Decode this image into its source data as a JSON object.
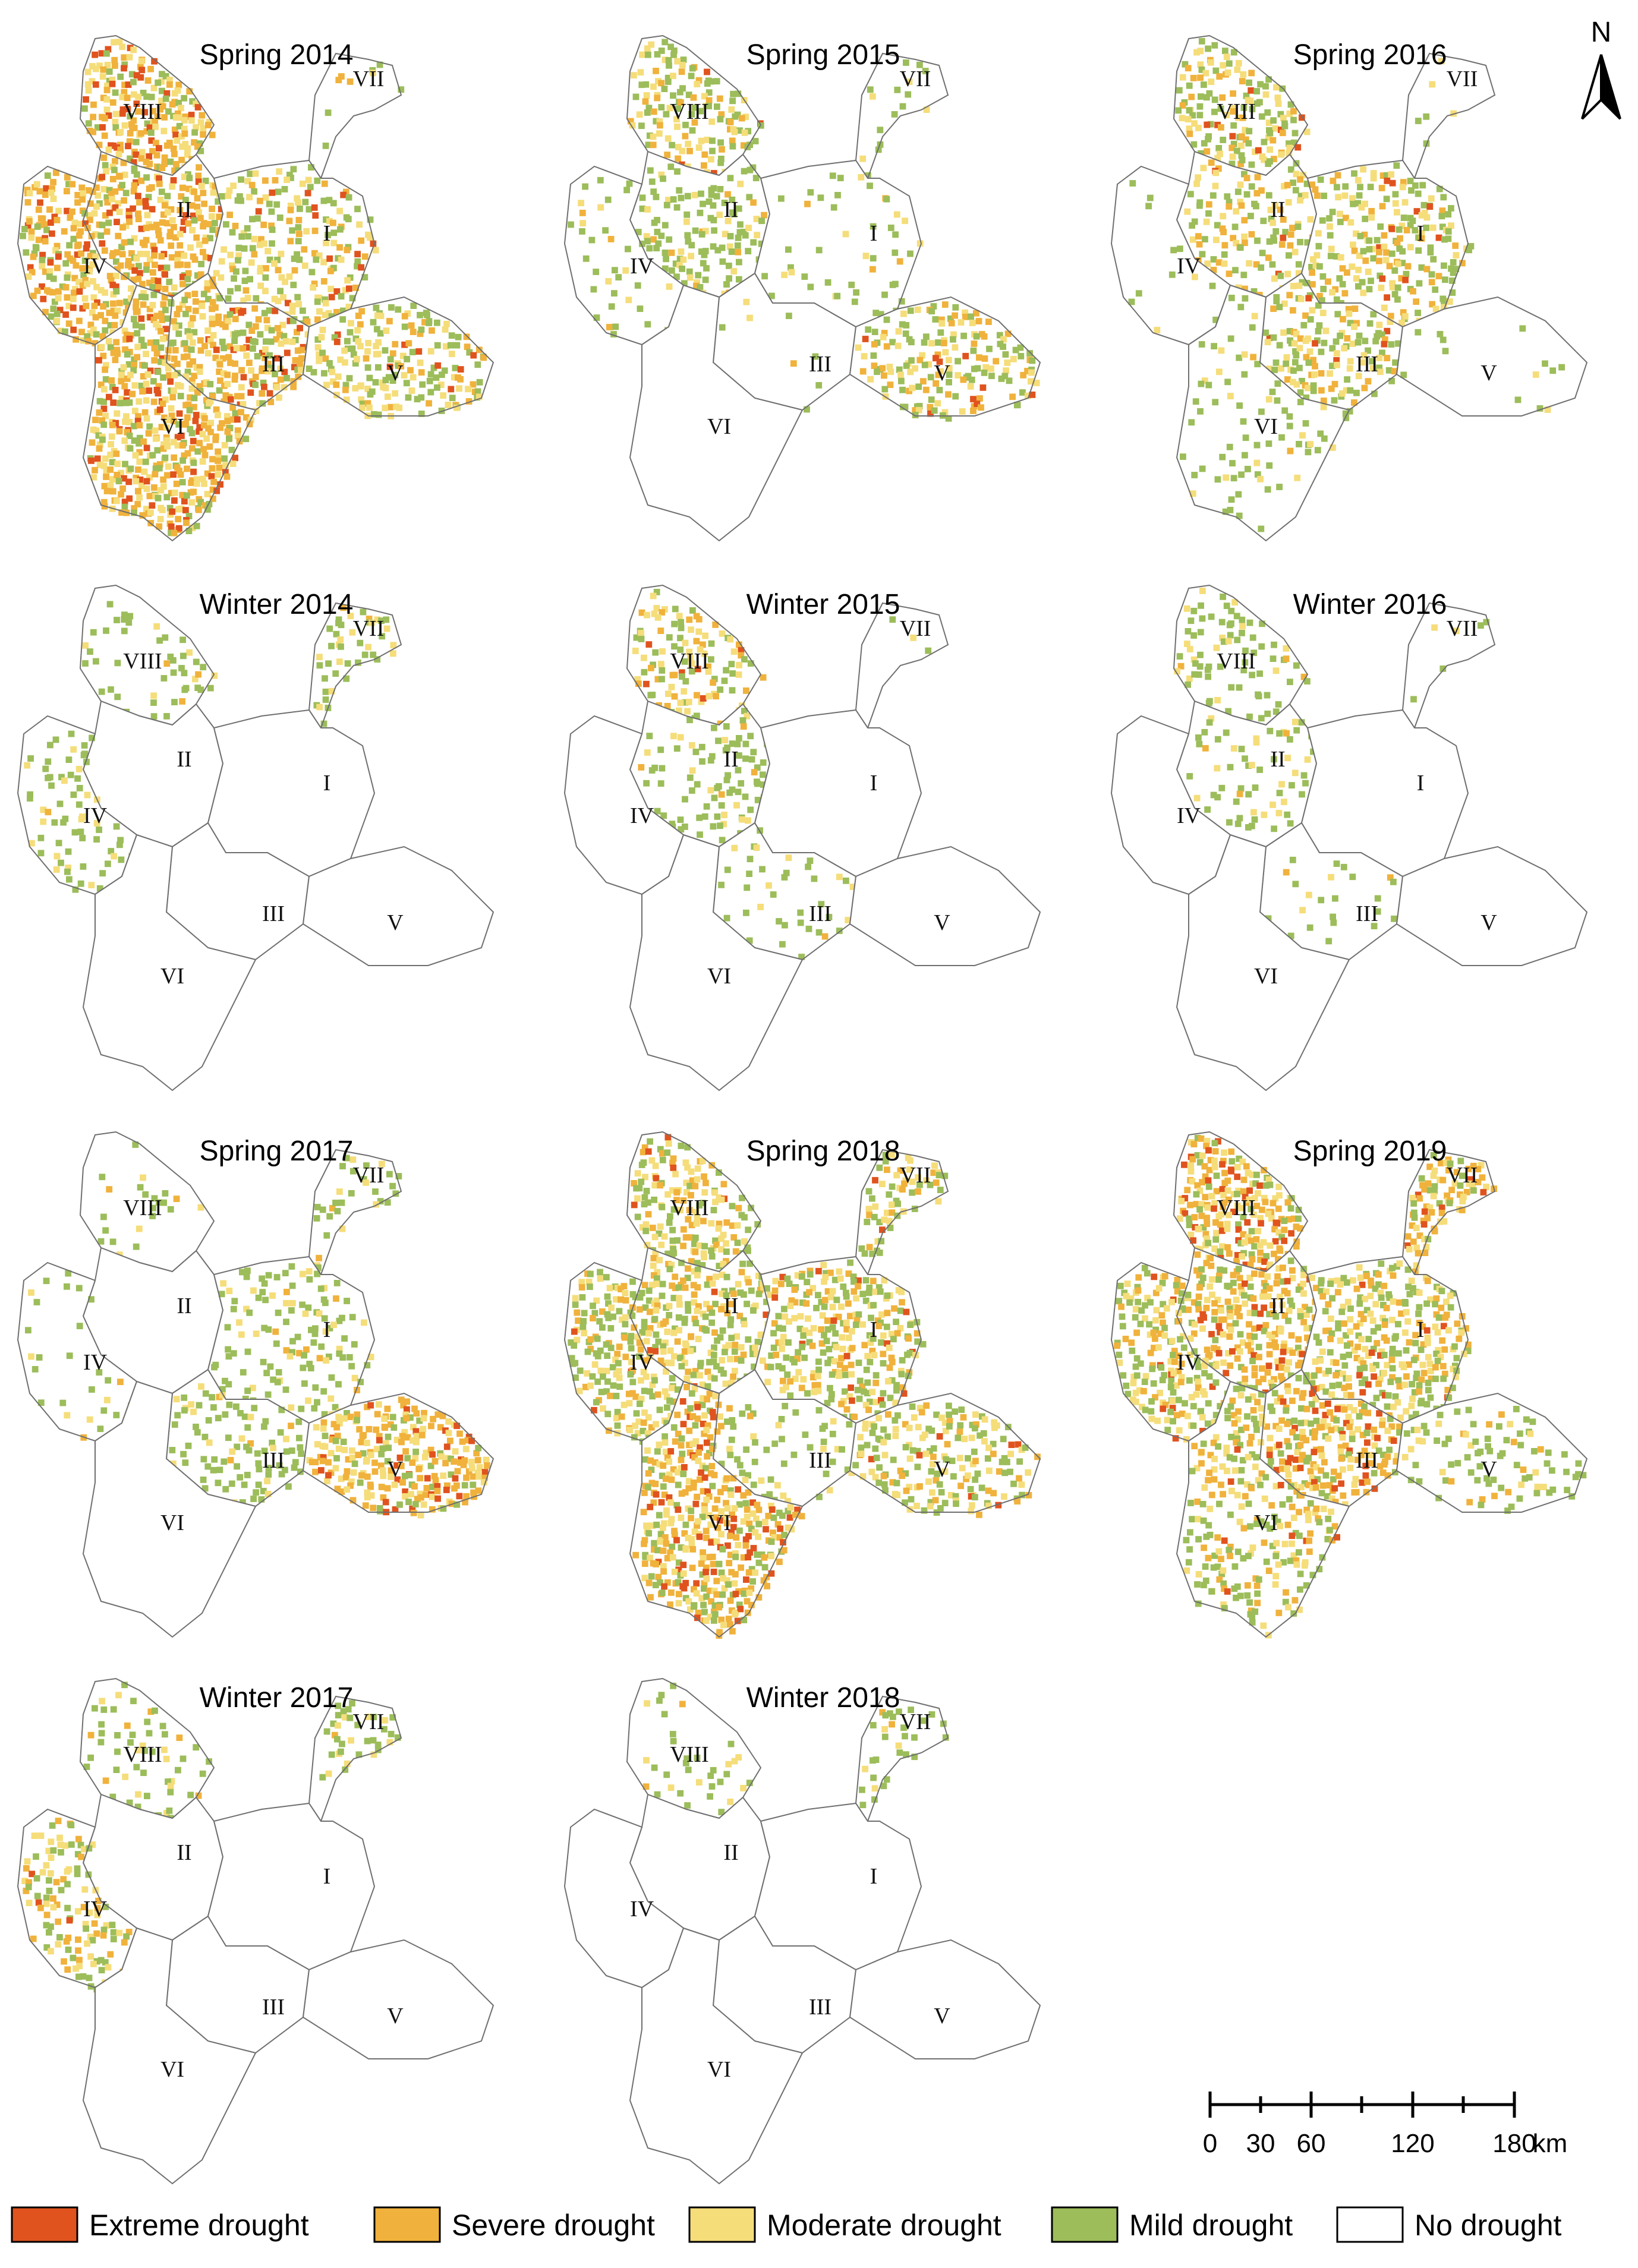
{
  "map": {
    "panels": [
      {
        "title": "Spring 2014",
        "intensity": {
          "I": 0.55,
          "II": 0.85,
          "III": 0.9,
          "IV": 0.85,
          "V": 0.6,
          "VI": 0.95,
          "VII": 0.1,
          "VIII": 0.9
        }
      },
      {
        "title": "Spring 2015",
        "intensity": {
          "I": 0.15,
          "II": 0.45,
          "III": 0.05,
          "IV": 0.15,
          "V": 0.6,
          "VI": 0.0,
          "VII": 0.2,
          "VIII": 0.55
        }
      },
      {
        "title": "Spring 2016",
        "intensity": {
          "I": 0.6,
          "II": 0.5,
          "III": 0.6,
          "IV": 0.1,
          "V": 0.05,
          "VI": 0.15,
          "VII": 0.05,
          "VIII": 0.7
        }
      },
      {
        "title": "Winter 2014",
        "intensity": {
          "I": 0.0,
          "II": 0.0,
          "III": 0.0,
          "IV": 0.3,
          "V": 0.0,
          "VI": 0.0,
          "VII": 0.4,
          "VIII": 0.2
        }
      },
      {
        "title": "Winter 2015",
        "intensity": {
          "I": 0.0,
          "II": 0.35,
          "III": 0.15,
          "IV": 0.0,
          "V": 0.0,
          "VI": 0.0,
          "VII": 0.05,
          "VIII": 0.55
        }
      },
      {
        "title": "Winter 2016",
        "intensity": {
          "I": 0.0,
          "II": 0.2,
          "III": 0.1,
          "IV": 0.0,
          "V": 0.0,
          "VI": 0.0,
          "VII": 0.05,
          "VIII": 0.3
        }
      },
      {
        "title": "Spring 2017",
        "intensity": {
          "I": 0.3,
          "II": 0.0,
          "III": 0.35,
          "IV": 0.1,
          "V": 0.8,
          "VI": 0.0,
          "VII": 0.3,
          "VIII": 0.1
        }
      },
      {
        "title": "Spring 2018",
        "intensity": {
          "I": 0.7,
          "II": 0.75,
          "III": 0.25,
          "IV": 0.7,
          "V": 0.6,
          "VI": 0.85,
          "VII": 0.6,
          "VIII": 0.7
        }
      },
      {
        "title": "Spring 2019",
        "intensity": {
          "I": 0.75,
          "II": 0.8,
          "III": 0.8,
          "IV": 0.75,
          "V": 0.3,
          "VI": 0.55,
          "VII": 0.8,
          "VIII": 0.9
        }
      },
      {
        "title": "Winter 2017",
        "intensity": {
          "I": 0.0,
          "II": 0.0,
          "III": 0.0,
          "IV": 0.5,
          "V": 0.0,
          "VI": 0.0,
          "VII": 0.3,
          "VIII": 0.25
        }
      },
      {
        "title": "Winter 2018",
        "intensity": {
          "I": 0.0,
          "II": 0.0,
          "III": 0.0,
          "IV": 0.0,
          "V": 0.0,
          "VI": 0.0,
          "VII": 0.3,
          "VIII": 0.2
        }
      }
    ],
    "region_labels": [
      "I",
      "II",
      "III",
      "IV",
      "V",
      "VI",
      "VII",
      "VIII"
    ],
    "north_label": "N",
    "scale_bar": {
      "ticks": [
        "0",
        "30",
        "60",
        "120",
        "180"
      ],
      "unit": "km"
    },
    "legend": [
      {
        "label": "Extreme drought",
        "color": "#e0531e"
      },
      {
        "label": "Severe drought",
        "color": "#f0b23c"
      },
      {
        "label": "Moderate drought",
        "color": "#f5dd7a"
      },
      {
        "label": "Mild drought",
        "color": "#9cbd5a"
      },
      {
        "label": "No drought",
        "color": "#ffffff"
      }
    ]
  }
}
